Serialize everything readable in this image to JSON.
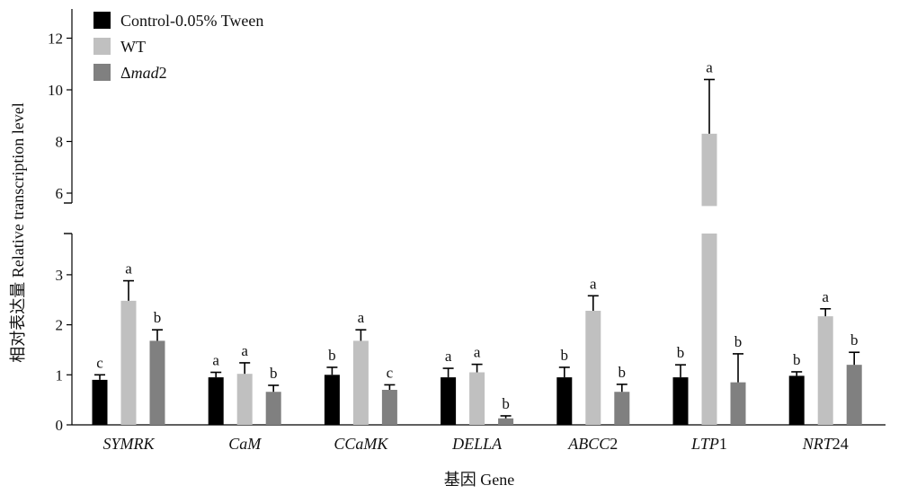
{
  "chart_data": {
    "type": "bar",
    "xlabel": "基因 Gene",
    "ylabel": "相对表达量 Relative transcription level",
    "y_axis_break": {
      "lower_range": [
        0,
        3.8
      ],
      "upper_range": [
        5.5,
        12.8
      ]
    },
    "lower_ticks": [
      0,
      1,
      2,
      3
    ],
    "upper_ticks": [
      6,
      8,
      10,
      12
    ],
    "categories": [
      {
        "name": "SYMRK",
        "prefix": "SYMRK",
        "suffix": ""
      },
      {
        "name": "CaM",
        "prefix": "CaM",
        "suffix": ""
      },
      {
        "name": "CCaMK",
        "prefix": "CCaMK",
        "suffix": ""
      },
      {
        "name": "DELLA",
        "prefix": "DELLA",
        "suffix": ""
      },
      {
        "name": "ABCC2",
        "prefix": "ABCC",
        "suffix": "2"
      },
      {
        "name": "LTP1",
        "prefix": "LTP",
        "suffix": "1"
      },
      {
        "name": "NRT24",
        "prefix": "NRT",
        "suffix": "24"
      }
    ],
    "series": [
      {
        "name": "Control-0.05% Tween",
        "legend_parts": [
          {
            "text": "Control-0.05% Tween",
            "italic": false
          }
        ],
        "color": "#000000",
        "values": [
          0.9,
          0.95,
          1.0,
          0.95,
          0.95,
          0.95,
          0.98
        ],
        "errors": [
          0.1,
          0.1,
          0.15,
          0.18,
          0.2,
          0.25,
          0.08
        ],
        "letters": [
          "c",
          "a",
          "b",
          "a",
          "b",
          "b",
          "b"
        ]
      },
      {
        "name": "WT",
        "legend_parts": [
          {
            "text": "WT",
            "italic": false
          }
        ],
        "color": "#c0c0c0",
        "values": [
          2.48,
          1.02,
          1.68,
          1.05,
          2.28,
          8.3,
          2.17
        ],
        "errors": [
          0.4,
          0.22,
          0.22,
          0.16,
          0.3,
          2.1,
          0.15
        ],
        "letters": [
          "a",
          "a",
          "a",
          "a",
          "a",
          "a",
          "a"
        ]
      },
      {
        "name": "Δmad2",
        "legend_parts": [
          {
            "text": "Δ",
            "italic": false
          },
          {
            "text": "mad",
            "italic": true
          },
          {
            "text": "2",
            "italic": false
          }
        ],
        "color": "#808080",
        "values": [
          1.68,
          0.66,
          0.7,
          0.13,
          0.66,
          0.85,
          1.2
        ],
        "errors": [
          0.22,
          0.13,
          0.1,
          0.05,
          0.15,
          0.57,
          0.25
        ],
        "letters": [
          "b",
          "b",
          "c",
          "b",
          "b",
          "b",
          "b"
        ]
      }
    ],
    "legend_position": "top-left"
  }
}
